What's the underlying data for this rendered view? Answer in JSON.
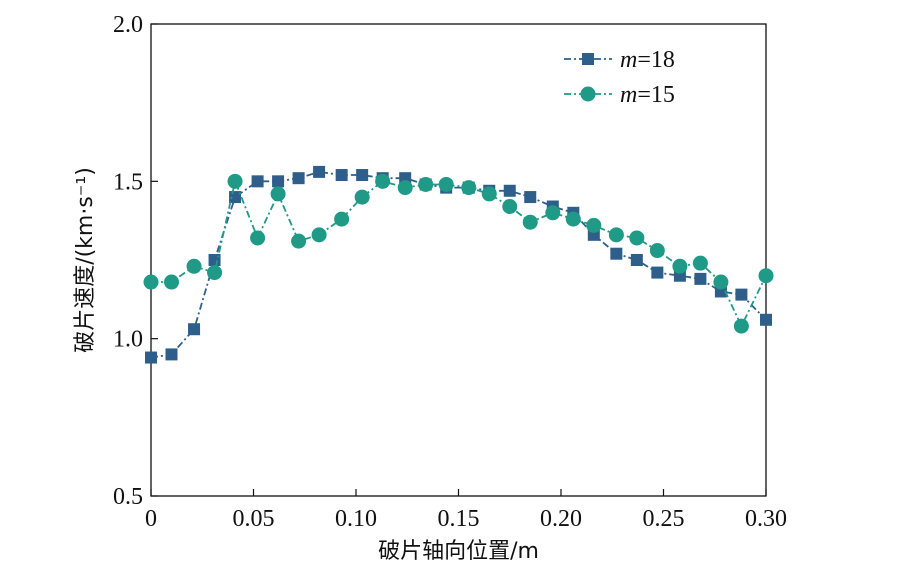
{
  "chart_data": {
    "type": "line",
    "xlabel": "破片轴向位置/m",
    "ylabel": "破片速度/(km·s⁻¹)",
    "xlim": [
      0,
      0.3
    ],
    "ylim": [
      0.5,
      2.0
    ],
    "xticks": [
      "0",
      "0.05",
      "0.10",
      "0.15",
      "0.20",
      "0.25",
      "0.30"
    ],
    "yticks": [
      "0.5",
      "1.0",
      "1.5",
      "2.0"
    ],
    "legend_position": "top-right",
    "grid": false,
    "series": [
      {
        "name": "m=18",
        "name_italic": "m",
        "name_rest": "=18",
        "color": "#2d5f8a",
        "marker": "square",
        "line_style": "dash-dot",
        "x": [
          0.0,
          0.01,
          0.021,
          0.031,
          0.041,
          0.052,
          0.062,
          0.072,
          0.082,
          0.093,
          0.103,
          0.113,
          0.124,
          0.134,
          0.144,
          0.155,
          0.165,
          0.175,
          0.185,
          0.196,
          0.206,
          0.216,
          0.227,
          0.237,
          0.247,
          0.258,
          0.268,
          0.278,
          0.288,
          0.3
        ],
        "y": [
          0.94,
          0.95,
          1.03,
          1.25,
          1.45,
          1.5,
          1.5,
          1.51,
          1.53,
          1.52,
          1.52,
          1.51,
          1.51,
          1.49,
          1.48,
          1.48,
          1.47,
          1.47,
          1.45,
          1.42,
          1.4,
          1.33,
          1.27,
          1.25,
          1.21,
          1.2,
          1.19,
          1.15,
          1.14,
          1.06
        ]
      },
      {
        "name": "m=15",
        "name_italic": "m",
        "name_rest": "=15",
        "color": "#1f9a86",
        "marker": "circle",
        "line_style": "dash-dot",
        "x": [
          0.0,
          0.01,
          0.021,
          0.031,
          0.041,
          0.052,
          0.062,
          0.072,
          0.082,
          0.093,
          0.103,
          0.113,
          0.124,
          0.134,
          0.144,
          0.155,
          0.165,
          0.175,
          0.185,
          0.196,
          0.206,
          0.216,
          0.227,
          0.237,
          0.247,
          0.258,
          0.268,
          0.278,
          0.288,
          0.3
        ],
        "y": [
          1.18,
          1.18,
          1.23,
          1.21,
          1.5,
          1.32,
          1.46,
          1.31,
          1.33,
          1.38,
          1.45,
          1.5,
          1.48,
          1.49,
          1.49,
          1.48,
          1.46,
          1.42,
          1.37,
          1.4,
          1.38,
          1.36,
          1.33,
          1.32,
          1.28,
          1.23,
          1.24,
          1.18,
          1.04,
          1.2
        ]
      }
    ]
  }
}
